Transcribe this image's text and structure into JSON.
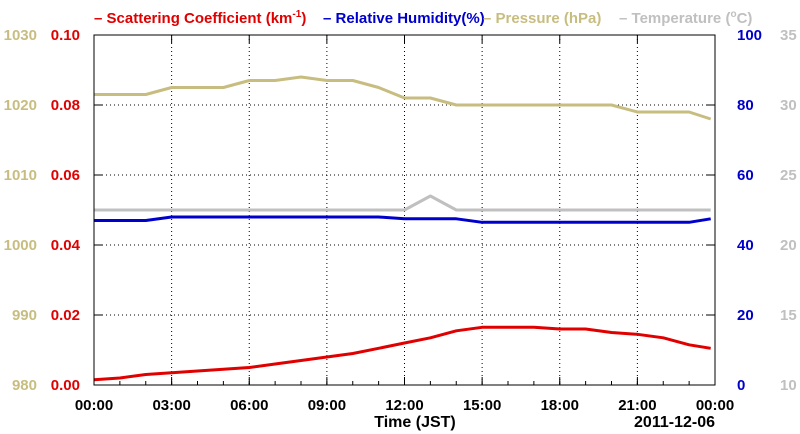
{
  "chart_data": {
    "type": "line",
    "x": [
      "00:00",
      "01:00",
      "02:00",
      "03:00",
      "04:00",
      "05:00",
      "06:00",
      "07:00",
      "08:00",
      "09:00",
      "10:00",
      "11:00",
      "12:00",
      "13:00",
      "14:00",
      "15:00",
      "16:00",
      "17:00",
      "18:00",
      "19:00",
      "20:00",
      "21:00",
      "22:00",
      "23:00",
      "23:50"
    ],
    "xlabel": "Time (JST)",
    "date_label": "2011-12-06",
    "x_tick_labels": [
      "00:00",
      "03:00",
      "06:00",
      "09:00",
      "12:00",
      "15:00",
      "18:00",
      "21:00",
      "00:00"
    ],
    "grid": true,
    "legend_placement": "top",
    "axes": [
      {
        "side": "left-outer",
        "series": "Pressure (hPa)",
        "ylim": [
          980,
          1030
        ],
        "ticks": [
          "980",
          "990",
          "1000",
          "1010",
          "1020",
          "1030"
        ],
        "color": "#c8bd80"
      },
      {
        "side": "left-inner",
        "series": "Scattering Coefficient",
        "ylim": [
          0,
          0.1
        ],
        "ticks": [
          "0.00",
          "0.02",
          "0.04",
          "0.06",
          "0.08",
          "0.10"
        ],
        "color": "#e00000"
      },
      {
        "side": "right-inner",
        "series": "Relative Humidity(%)",
        "ylim": [
          0,
          100
        ],
        "ticks": [
          "0",
          "20",
          "40",
          "60",
          "80",
          "100"
        ],
        "color": "#0000cc"
      },
      {
        "side": "right-outer",
        "series": "Temperature",
        "ylim": [
          10,
          35
        ],
        "ticks": [
          "10",
          "15",
          "20",
          "25",
          "30",
          "35"
        ],
        "color": "#c0c0c0"
      }
    ],
    "series": [
      {
        "name": "Scattering Coefficient",
        "unit_label": "(km",
        "unit_sup": "-1",
        "unit_close": ")",
        "color": "#e00000",
        "values": [
          0.0015,
          0.002,
          0.003,
          0.0035,
          0.004,
          0.0045,
          0.005,
          0.006,
          0.007,
          0.008,
          0.009,
          0.0105,
          0.012,
          0.0135,
          0.0155,
          0.0165,
          0.0165,
          0.0165,
          0.016,
          0.016,
          0.015,
          0.0145,
          0.0135,
          0.0115,
          0.0105
        ]
      },
      {
        "name": "Relative Humidity(%)",
        "color": "#0000cc",
        "values": [
          47,
          47,
          47,
          48,
          48,
          48,
          48,
          48,
          48,
          48,
          48,
          48,
          47.5,
          47.5,
          47.5,
          46.5,
          46.5,
          46.5,
          46.5,
          46.5,
          46.5,
          46.5,
          46.5,
          46.5,
          47.5
        ]
      },
      {
        "name": "Pressure (hPa)",
        "color": "#c8bd80",
        "values": [
          1021.5,
          1021.5,
          1021.5,
          1022.5,
          1022.5,
          1022.5,
          1023.5,
          1023.5,
          1024,
          1023.5,
          1023.5,
          1022.5,
          1021,
          1021,
          1020,
          1020,
          1020,
          1020,
          1020,
          1020,
          1020,
          1019,
          1019,
          1019,
          1018
        ]
      },
      {
        "name": "Temperature",
        "color": "#c0c0c0",
        "values": [
          22.5,
          22.5,
          22.5,
          22.5,
          22.5,
          22.5,
          22.5,
          22.5,
          22.5,
          22.5,
          22.5,
          22.5,
          22.5,
          23.5,
          22.5,
          22.5,
          22.5,
          22.5,
          22.5,
          22.5,
          22.5,
          22.5,
          22.5,
          22.5,
          22.5
        ]
      }
    ]
  }
}
